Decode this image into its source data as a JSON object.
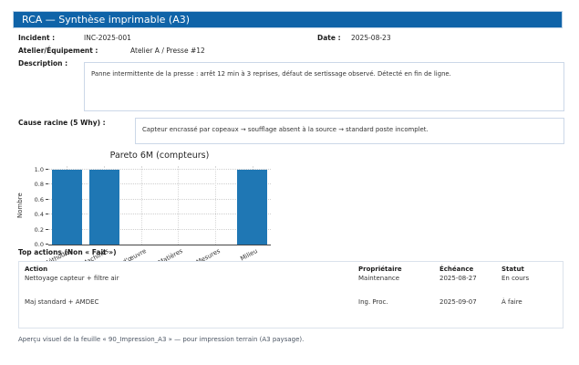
{
  "header": {
    "title": "RCA — Synthèse imprimable (A3)"
  },
  "fields": {
    "incident_label": "Incident :",
    "incident_value": "INC-2025-001",
    "date_label": "Date :",
    "date_value": "2025-08-23",
    "atelier_label": "Atelier/Équipement :",
    "atelier_value": "Atelier A / Presse #12",
    "description_label": "Description :",
    "description_value": "Panne intermittente de la presse : arrêt 12 min à 3 reprises, défaut de sertissage observé. Détecté en fin de ligne.",
    "cause_label": "Cause racine (5 Why) :",
    "cause_value": "Capteur encrassé par copeaux → soufflage absent à la source → standard poste incomplet."
  },
  "chart_data": {
    "type": "bar",
    "title": "Pareto 6M (compteurs)",
    "categories": [
      "Méthodes",
      "Machines",
      "Main-d'œuvre",
      "Matières",
      "Mesures",
      "Milieu"
    ],
    "values": [
      1,
      1,
      0,
      0,
      0,
      1
    ],
    "xlabel": "",
    "ylabel": "Nombre",
    "ylim": [
      0.0,
      1.0
    ],
    "yticks": [
      0.0,
      0.2,
      0.4,
      0.6,
      0.8,
      1.0
    ],
    "grid": true,
    "legend": false,
    "bar_color": "#1f77b4"
  },
  "actions": {
    "section_label": "Top actions (Non « Fait »)",
    "columns": [
      "Action",
      "Propriétaire",
      "Échéance",
      "Statut"
    ],
    "rows": [
      {
        "action": "Nettoyage capteur + filtre air",
        "proprietaire": "Maintenance",
        "echeance": "2025-08-27",
        "statut": "En cours"
      },
      {
        "action": "Maj standard + AMDEC",
        "proprietaire": "Ing. Proc.",
        "echeance": "2025-09-07",
        "statut": "À faire"
      }
    ]
  },
  "footer": {
    "note": "Aperçu visuel de la feuille « 90_Impression_A3 » — pour impression terrain (A3 paysage)."
  },
  "colors": {
    "accent": "#0f63a8",
    "bar": "#1f77b4"
  }
}
